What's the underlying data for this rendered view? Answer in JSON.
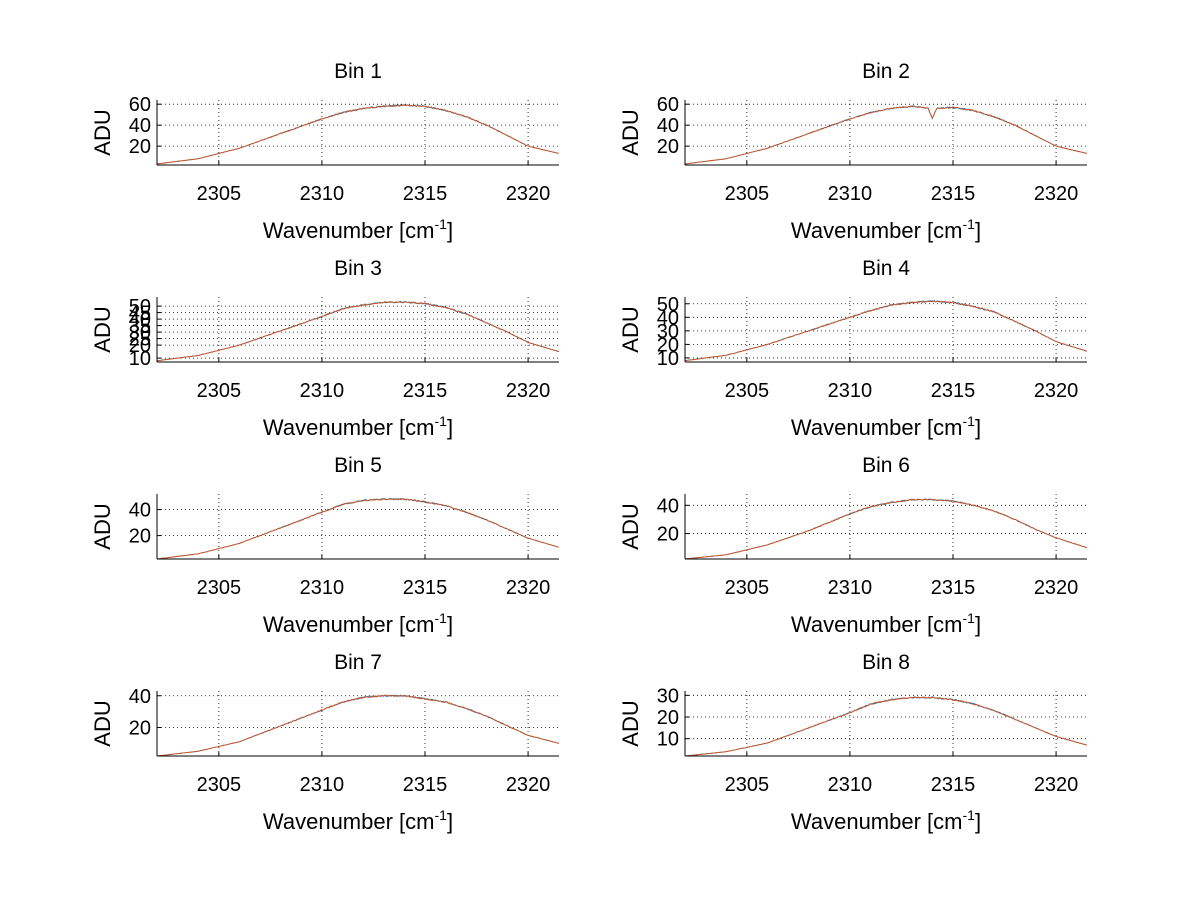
{
  "chart_data": [
    {
      "type": "line",
      "title": "Bin 1",
      "xlabel": "Wavenumber [cm",
      "xlabel_sup": "-1",
      "xlabel_close": "]",
      "ylabel": "ADU",
      "xlim": [
        2302,
        2321.5
      ],
      "ylim": [
        2,
        64
      ],
      "xticks": [
        2305,
        2310,
        2315,
        2320
      ],
      "yticks": [
        20,
        40,
        60
      ],
      "grid": true,
      "series": [
        {
          "color": "#0072BD",
          "x": [
            2302,
            2304,
            2306,
            2308,
            2310,
            2311,
            2312,
            2313,
            2314,
            2315,
            2316,
            2317,
            2318,
            2319,
            2320,
            2321.5
          ],
          "y": [
            3,
            8,
            18,
            32,
            46,
            52,
            56,
            58,
            59,
            58,
            54,
            48,
            40,
            30,
            20,
            13
          ]
        },
        {
          "color": "#D95319",
          "x": [
            2302,
            2304,
            2306,
            2308,
            2310,
            2311,
            2312,
            2313,
            2314,
            2315,
            2316,
            2317,
            2318,
            2319,
            2320,
            2321.5
          ],
          "y": [
            3,
            8,
            18,
            32,
            46,
            52,
            56,
            58,
            59,
            58,
            54,
            48,
            40,
            30,
            20,
            13
          ]
        }
      ]
    },
    {
      "type": "line",
      "title": "Bin 2",
      "xlabel": "Wavenumber [cm",
      "xlabel_sup": "-1",
      "xlabel_close": "]",
      "ylabel": "ADU",
      "xlim": [
        2302,
        2321.5
      ],
      "ylim": [
        2,
        64
      ],
      "xticks": [
        2305,
        2310,
        2315,
        2320
      ],
      "yticks": [
        20,
        40,
        60
      ],
      "grid": true,
      "series": [
        {
          "color": "#0072BD",
          "x": [
            2302,
            2304,
            2306,
            2308,
            2310,
            2311,
            2312,
            2313,
            2313.8,
            2314,
            2314.2,
            2315,
            2316,
            2317,
            2318,
            2319,
            2320,
            2321.5
          ],
          "y": [
            3,
            8,
            18,
            32,
            46,
            52,
            56,
            58,
            56,
            46,
            56,
            57,
            54,
            48,
            40,
            30,
            20,
            13
          ]
        },
        {
          "color": "#D95319",
          "x": [
            2302,
            2304,
            2306,
            2308,
            2310,
            2311,
            2312,
            2313,
            2313.8,
            2314,
            2314.2,
            2315,
            2316,
            2317,
            2318,
            2319,
            2320,
            2321.5
          ],
          "y": [
            3,
            8,
            18,
            32,
            46,
            52,
            56,
            58,
            56,
            46,
            56,
            57,
            54,
            48,
            40,
            30,
            20,
            13
          ]
        }
      ]
    },
    {
      "type": "line",
      "title": "Bin 3",
      "xlabel": "Wavenumber [cm",
      "xlabel_sup": "-1",
      "xlabel_close": "]",
      "ylabel": "ADU",
      "xlim": [
        2302,
        2321.5
      ],
      "ylim": [
        7,
        57
      ],
      "xticks": [
        2305,
        2310,
        2315,
        2320
      ],
      "yticks": [
        10,
        20,
        25,
        30,
        35,
        40,
        45,
        50
      ],
      "grid": true,
      "series": [
        {
          "color": "#0072BD",
          "x": [
            2302,
            2304,
            2306,
            2308,
            2310,
            2311,
            2312,
            2313,
            2314,
            2315,
            2316,
            2317,
            2318,
            2319,
            2320,
            2321.5
          ],
          "y": [
            8,
            12,
            20,
            31,
            42,
            48,
            51,
            53,
            53,
            52,
            49,
            44,
            37,
            30,
            22,
            15
          ]
        },
        {
          "color": "#D95319",
          "x": [
            2302,
            2304,
            2306,
            2308,
            2310,
            2311,
            2312,
            2313,
            2314,
            2315,
            2316,
            2317,
            2318,
            2319,
            2320,
            2321.5
          ],
          "y": [
            8,
            12,
            20,
            31,
            42,
            48,
            51,
            53,
            53,
            52,
            49,
            44,
            37,
            30,
            22,
            15
          ]
        }
      ]
    },
    {
      "type": "line",
      "title": "Bin 4",
      "xlabel": "Wavenumber [cm",
      "xlabel_sup": "-1",
      "xlabel_close": "]",
      "ylabel": "ADU",
      "xlim": [
        2302,
        2321.5
      ],
      "ylim": [
        7,
        55
      ],
      "xticks": [
        2305,
        2310,
        2315,
        2320
      ],
      "yticks": [
        10,
        20,
        30,
        40,
        50
      ],
      "grid": true,
      "series": [
        {
          "color": "#0072BD",
          "x": [
            2302,
            2304,
            2306,
            2308,
            2310,
            2311,
            2312,
            2313,
            2314,
            2315,
            2316,
            2317,
            2318,
            2319,
            2320,
            2321.5
          ],
          "y": [
            8,
            12,
            20,
            30,
            40,
            45,
            49,
            51,
            52,
            51,
            48,
            44,
            37,
            30,
            22,
            15
          ]
        },
        {
          "color": "#D95319",
          "x": [
            2302,
            2304,
            2306,
            2308,
            2310,
            2311,
            2312,
            2313,
            2314,
            2315,
            2316,
            2317,
            2318,
            2319,
            2320,
            2321.5
          ],
          "y": [
            8,
            12,
            20,
            30,
            40,
            45,
            49,
            51,
            52,
            51,
            48,
            44,
            37,
            30,
            22,
            15
          ]
        }
      ]
    },
    {
      "type": "line",
      "title": "Bin 5",
      "xlabel": "Wavenumber [cm",
      "xlabel_sup": "-1",
      "xlabel_close": "]",
      "ylabel": "ADU",
      "xlim": [
        2302,
        2321.5
      ],
      "ylim": [
        2,
        52
      ],
      "xticks": [
        2305,
        2310,
        2315,
        2320
      ],
      "yticks": [
        20,
        40
      ],
      "grid": true,
      "series": [
        {
          "color": "#0072BD",
          "x": [
            2302,
            2304,
            2306,
            2308,
            2310,
            2311,
            2312,
            2313,
            2314,
            2315,
            2316,
            2317,
            2318,
            2319,
            2320,
            2321.5
          ],
          "y": [
            2,
            6,
            14,
            26,
            38,
            44,
            47,
            48,
            48,
            46,
            43,
            38,
            32,
            25,
            18,
            11
          ]
        },
        {
          "color": "#D95319",
          "x": [
            2302,
            2304,
            2306,
            2308,
            2310,
            2311,
            2312,
            2313,
            2314,
            2315,
            2316,
            2317,
            2318,
            2319,
            2320,
            2321.5
          ],
          "y": [
            2,
            6,
            14,
            26,
            38,
            44,
            47,
            48,
            48,
            46,
            43,
            38,
            32,
            25,
            18,
            11
          ]
        }
      ]
    },
    {
      "type": "line",
      "title": "Bin 6",
      "xlabel": "Wavenumber [cm",
      "xlabel_sup": "-1",
      "xlabel_close": "]",
      "ylabel": "ADU",
      "xlim": [
        2302,
        2321.5
      ],
      "ylim": [
        2,
        48
      ],
      "xticks": [
        2305,
        2310,
        2315,
        2320
      ],
      "yticks": [
        20,
        40
      ],
      "grid": true,
      "series": [
        {
          "color": "#0072BD",
          "x": [
            2302,
            2304,
            2306,
            2308,
            2310,
            2311,
            2312,
            2313,
            2314,
            2315,
            2316,
            2317,
            2318,
            2319,
            2320,
            2321.5
          ],
          "y": [
            2,
            5,
            12,
            22,
            34,
            39,
            42,
            44,
            44,
            43,
            40,
            36,
            30,
            23,
            17,
            10
          ]
        },
        {
          "color": "#D95319",
          "x": [
            2302,
            2304,
            2306,
            2308,
            2310,
            2311,
            2312,
            2313,
            2314,
            2315,
            2316,
            2317,
            2318,
            2319,
            2320,
            2321.5
          ],
          "y": [
            2,
            5,
            12,
            22,
            34,
            39,
            42,
            44,
            44,
            43,
            40,
            36,
            30,
            23,
            17,
            10
          ]
        }
      ]
    },
    {
      "type": "line",
      "title": "Bin 7",
      "xlabel": "Wavenumber [cm",
      "xlabel_sup": "-1",
      "xlabel_close": "]",
      "ylabel": "ADU",
      "xlim": [
        2302,
        2321.5
      ],
      "ylim": [
        2,
        43
      ],
      "xticks": [
        2305,
        2310,
        2315,
        2320
      ],
      "yticks": [
        20,
        40
      ],
      "grid": true,
      "series": [
        {
          "color": "#0072BD",
          "x": [
            2302,
            2304,
            2306,
            2308,
            2310,
            2311,
            2312,
            2313,
            2314,
            2315,
            2316,
            2317,
            2318,
            2319,
            2320,
            2321.5
          ],
          "y": [
            2,
            5,
            11,
            21,
            31,
            36,
            39,
            40,
            40,
            38,
            36,
            32,
            27,
            21,
            15,
            10
          ]
        },
        {
          "color": "#D95319",
          "x": [
            2302,
            2304,
            2306,
            2308,
            2310,
            2311,
            2312,
            2313,
            2314,
            2315,
            2316,
            2317,
            2318,
            2319,
            2320,
            2321.5
          ],
          "y": [
            2,
            5,
            11,
            21,
            31,
            36,
            39,
            40,
            40,
            38,
            36,
            32,
            27,
            21,
            15,
            10
          ]
        }
      ]
    },
    {
      "type": "line",
      "title": "Bin 8",
      "xlabel": "Wavenumber [cm",
      "xlabel_sup": "-1",
      "xlabel_close": "]",
      "ylabel": "ADU",
      "xlim": [
        2302,
        2321.5
      ],
      "ylim": [
        2,
        32
      ],
      "xticks": [
        2305,
        2310,
        2315,
        2320
      ],
      "yticks": [
        10,
        20,
        30
      ],
      "grid": true,
      "series": [
        {
          "color": "#0072BD",
          "x": [
            2302,
            2304,
            2306,
            2308,
            2310,
            2311,
            2312,
            2313,
            2314,
            2315,
            2316,
            2317,
            2318,
            2319,
            2320,
            2321.5
          ],
          "y": [
            2,
            4,
            8,
            15,
            22,
            26,
            28,
            29,
            29,
            28,
            26,
            23,
            19,
            15,
            11,
            7
          ]
        },
        {
          "color": "#D95319",
          "x": [
            2302,
            2304,
            2306,
            2308,
            2310,
            2311,
            2312,
            2313,
            2314,
            2315,
            2316,
            2317,
            2318,
            2319,
            2320,
            2321.5
          ],
          "y": [
            2,
            4,
            8,
            15,
            22,
            26,
            28,
            29,
            29,
            28,
            26,
            23,
            19,
            15,
            11,
            7
          ]
        }
      ]
    }
  ]
}
